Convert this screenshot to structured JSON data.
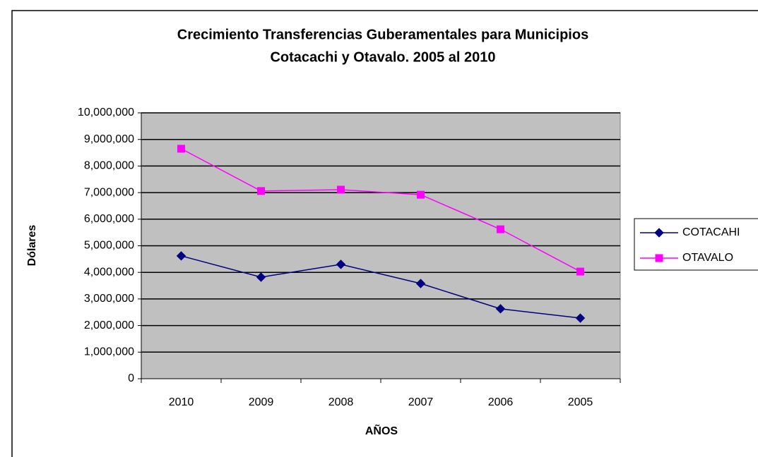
{
  "chart_data": {
    "type": "line",
    "title": [
      "Crecimiento Transferencias Guberamentales para Municipios",
      "Cotacachi y Otavalo. 2005 al 2010"
    ],
    "x_label": "AÑOS",
    "y_label": "Dólares",
    "categories": [
      "2010",
      "2009",
      "2008",
      "2007",
      "2006",
      "2005"
    ],
    "series": [
      {
        "name": "COTACAHI",
        "color": "#000080",
        "marker": "diamond",
        "values": [
          4620000,
          3820000,
          4300000,
          3580000,
          2630000,
          2280000
        ]
      },
      {
        "name": "OTAVALO",
        "color": "#ff00ff",
        "marker": "square",
        "values": [
          8650000,
          7060000,
          7110000,
          6920000,
          5620000,
          4030000
        ]
      }
    ],
    "ylim": [
      0,
      10000000
    ],
    "yticks": [
      0,
      {
        "value": 1000000,
        "label": "1,000,000"
      },
      {
        "value": 2000000,
        "label": "2,000,000"
      },
      {
        "value": 3000000,
        "label": "3,000,000"
      },
      {
        "value": 4000000,
        "label": "4,000,000"
      },
      {
        "value": 5000000,
        "label": "5,000,000"
      },
      {
        "value": 6000000,
        "label": "6,000,000"
      },
      {
        "value": 7000000,
        "label": "7,000,000"
      },
      {
        "value": 8000000,
        "label": "8,000,000"
      },
      {
        "value": 9000000,
        "label": "9,000,000"
      },
      {
        "value": 10000000,
        "label": "10,000,000"
      }
    ],
    "grid": true,
    "legend": "right",
    "plot_background": "#c0c0c0"
  }
}
